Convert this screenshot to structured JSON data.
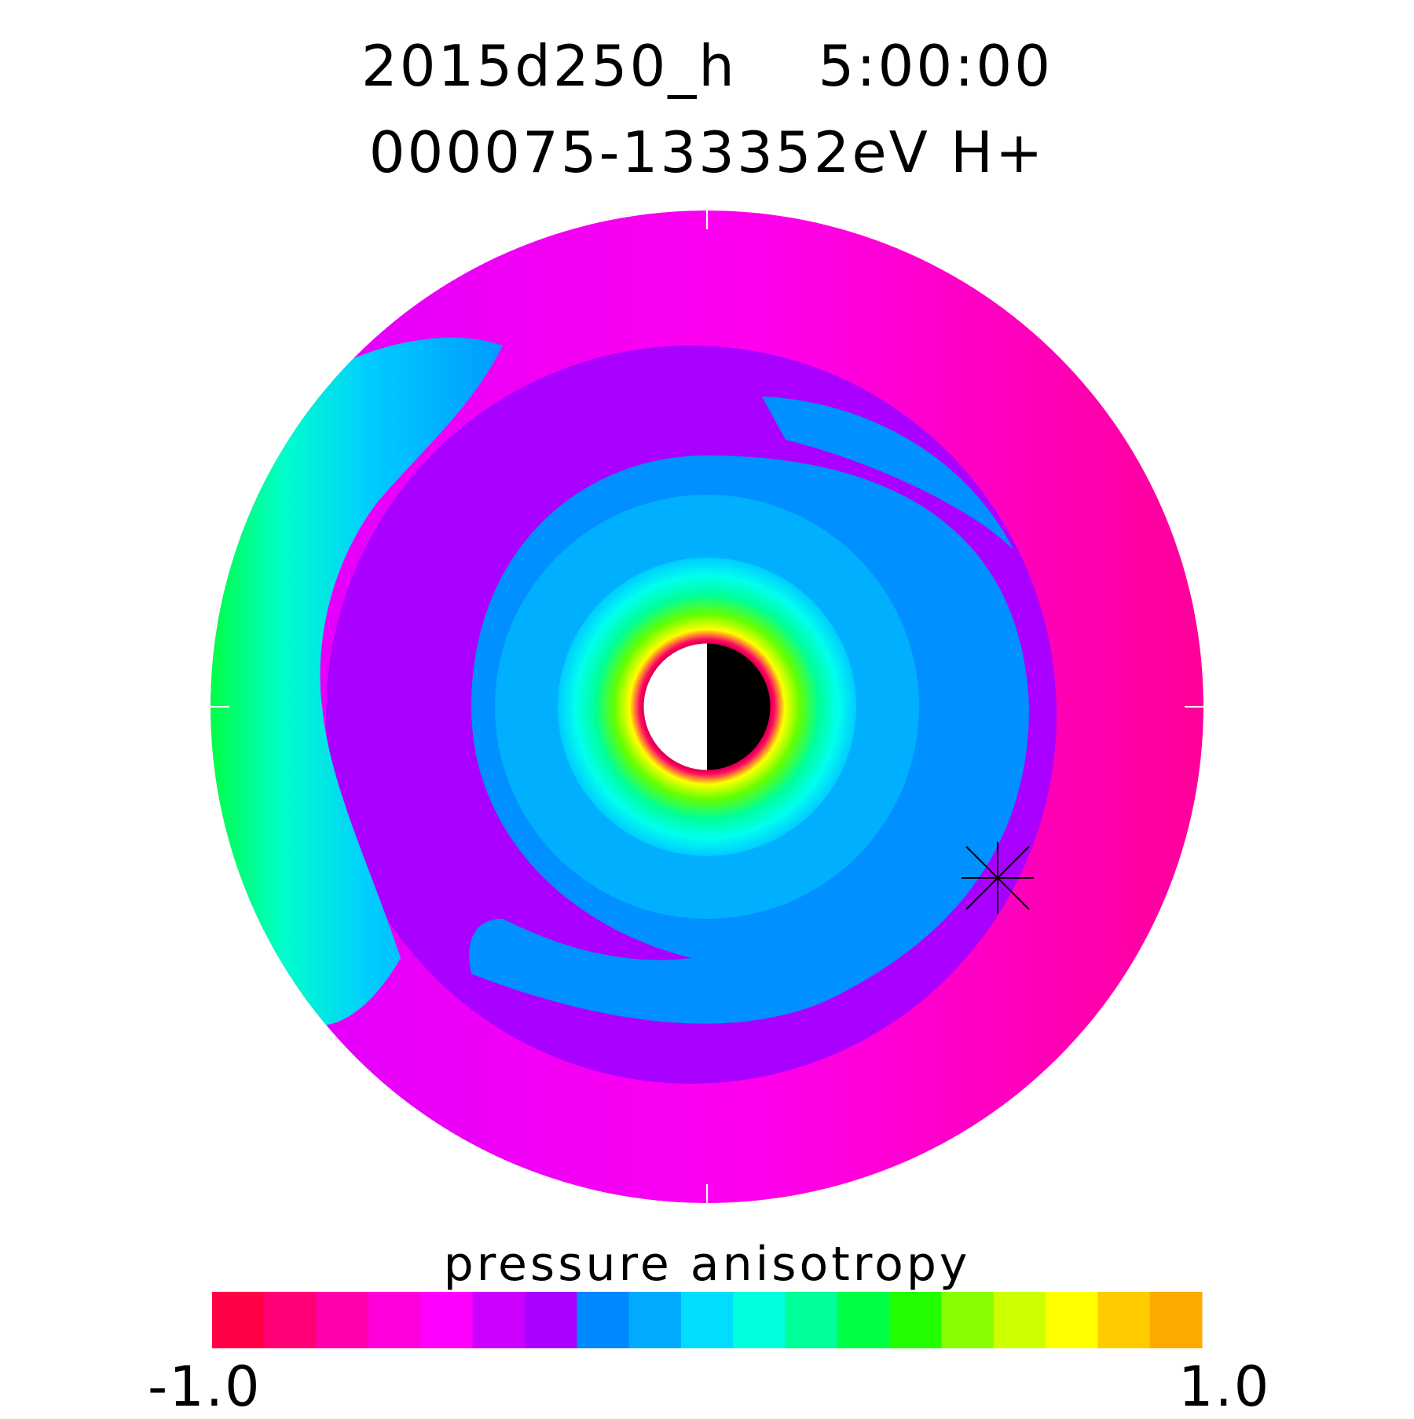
{
  "chart_data": {
    "type": "heatmap",
    "projection": "polar (equatorial plane, dusk on left, noon at right)",
    "title_line1": "2015d250_h    5:00:00",
    "title_line2": "000075-133352eV H+",
    "colorbar": {
      "label": "pressure anisotropy",
      "min": -1.0,
      "max": 1.0,
      "min_label": "-1.0",
      "max_label": "1.0",
      "colors": [
        "#ff0044",
        "#ff0077",
        "#ff00aa",
        "#ff00dd",
        "#ff00ff",
        "#cc00ff",
        "#aa00ff",
        "#0088ff",
        "#00aaff",
        "#00ddff",
        "#00ffdd",
        "#00ff99",
        "#00ff44",
        "#22ff00",
        "#88ff00",
        "#ccff00",
        "#ffff00",
        "#ffcc00",
        "#ffaa00"
      ]
    },
    "regions": {
      "outer_ring": "#ff00cc",
      "middle_ring": "#aa00ff",
      "inner_ring": "#0090ff",
      "core_ring": "#00b4ff",
      "center_glow": [
        "#00ffee",
        "#00ff66",
        "#aaff00",
        "#ff0066"
      ]
    },
    "earth": {
      "day_color": "#ffffff",
      "night_color": "#000000",
      "border_color": "#e0004a"
    },
    "marker": "asterisk"
  }
}
